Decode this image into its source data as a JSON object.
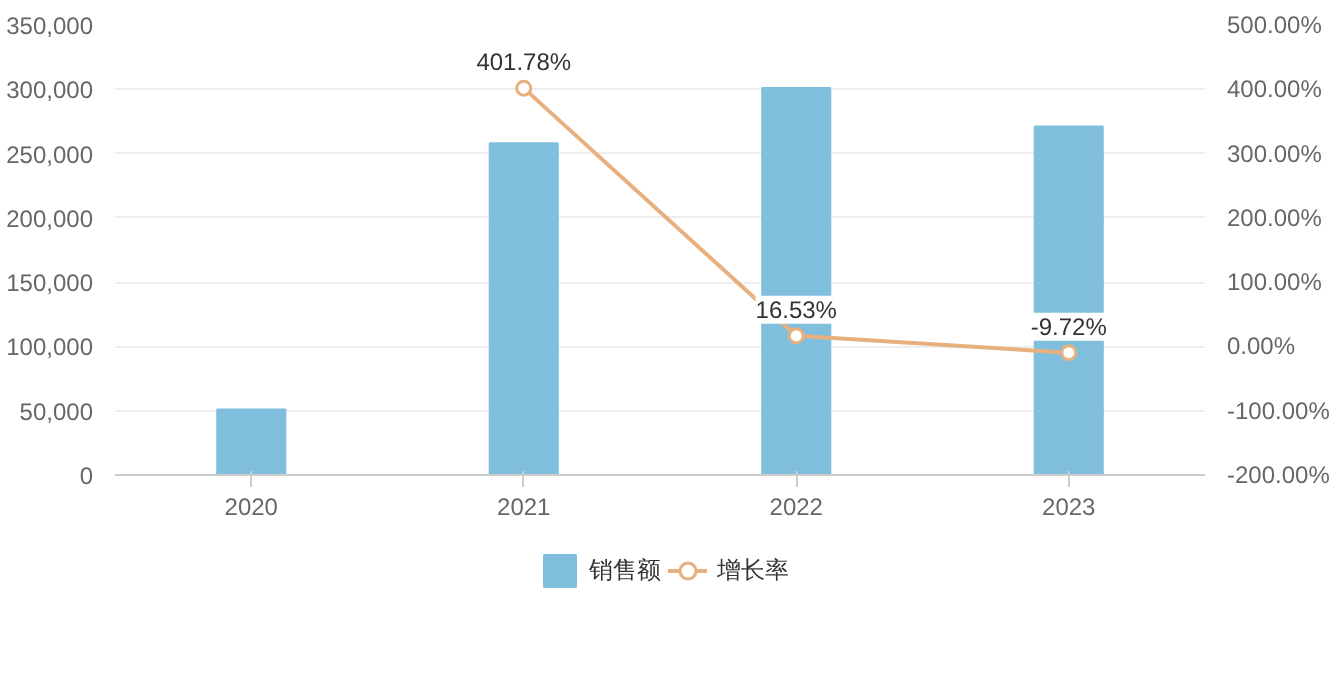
{
  "chart_data": {
    "type": "bar",
    "categories": [
      "2020",
      "2021",
      "2022",
      "2023"
    ],
    "series": [
      {
        "name": "销售额",
        "color": "#7fbfdd",
        "values": [
          51000,
          258000,
          301000,
          271000
        ]
      },
      {
        "name": "增长率",
        "type": "line",
        "axis": "y2",
        "color": "#e8b07f",
        "marker": "circle",
        "values": [
          null,
          401.78,
          16.53,
          -9.72
        ],
        "value_labels": [
          null,
          "401.78%",
          "16.53%",
          "-9.72%"
        ]
      }
    ],
    "ylim": [
      0,
      350000
    ],
    "yticks": [
      0,
      {
        "value": 50000,
        "label": "50,000"
      },
      {
        "value": 100000,
        "label": "100,000"
      },
      {
        "value": 150000,
        "label": "150,000"
      },
      {
        "value": 200000,
        "label": "200,000"
      },
      {
        "value": 250000,
        "label": "250,000"
      },
      {
        "value": 300000,
        "label": "300,000"
      },
      {
        "value": 350000,
        "label": "350,000"
      }
    ],
    "y2lim": [
      -200,
      500
    ],
    "y2ticks": [
      {
        "value": -200,
        "label": "-200.00%"
      },
      {
        "value": -100,
        "label": "-100.00%"
      },
      {
        "value": 0,
        "label": "0.00%"
      },
      {
        "value": 100,
        "label": "100.00%"
      },
      {
        "value": 200,
        "label": "200.00%"
      },
      {
        "value": 300,
        "label": "300.00%"
      },
      {
        "value": 400,
        "label": "400.00%"
      },
      {
        "value": 500,
        "label": "500.00%"
      }
    ],
    "grid": "y",
    "legend": "bottom"
  }
}
